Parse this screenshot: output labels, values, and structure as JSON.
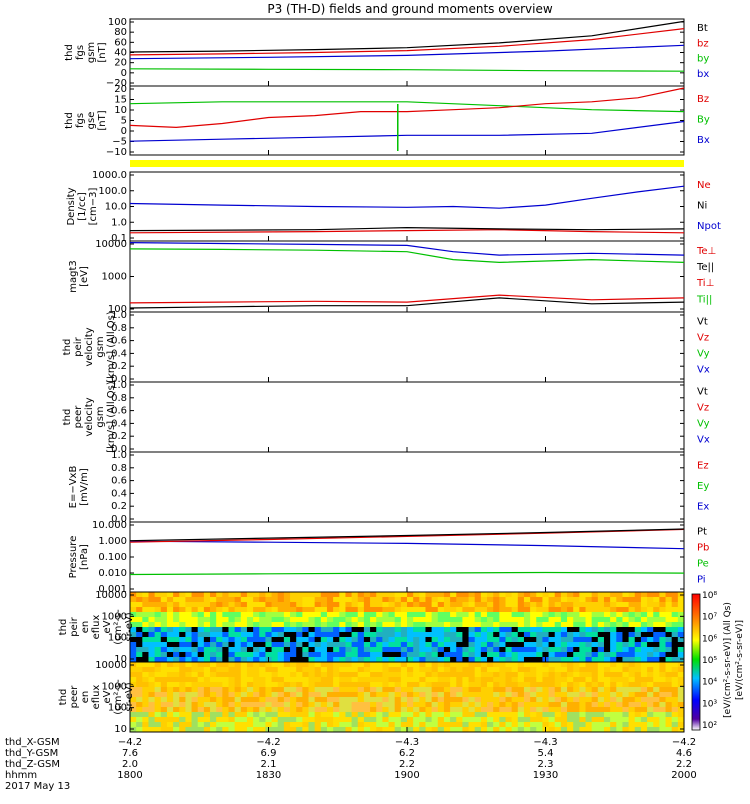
{
  "chart_data": {
    "type": "line",
    "title": "P3 (TH-D) fields and ground moments overview",
    "panels": [
      {
        "id": "fgs-gsm",
        "ylabel": [
          "thd",
          "fgs",
          "gsm",
          "[nT]"
        ],
        "yticks": [
          "100",
          "80",
          "60",
          "40",
          "20",
          "0",
          "−20"
        ],
        "ylim": [
          -40,
          100
        ],
        "series": [
          {
            "name": "Bt",
            "color": "#000000"
          },
          {
            "name": "bz",
            "color": "#e00000"
          },
          {
            "name": "by",
            "color": "#00c000"
          },
          {
            "name": "bx",
            "color": "#0000d0"
          }
        ]
      },
      {
        "id": "fgs-gse",
        "ylabel": [
          "thd",
          "fgs",
          "gse",
          "[nT]"
        ],
        "yticks": [
          "20",
          "15",
          "10",
          "5",
          "0",
          "−5",
          "−10"
        ],
        "ylim": [
          -15,
          20
        ],
        "series": [
          {
            "name": "Bz",
            "color": "#e00000"
          },
          {
            "name": "By",
            "color": "#00c000"
          },
          {
            "name": "Bx",
            "color": "#0000d0"
          }
        ]
      },
      {
        "id": "density",
        "ylabel": [
          "Density",
          "[1/cc]",
          "[cm−3]"
        ],
        "yticks": [
          "1000.0",
          "100.0",
          "10.0",
          "1.0",
          "0.1"
        ],
        "ylim": [
          0.1,
          1000
        ],
        "log": true,
        "series": [
          {
            "name": "Ne",
            "color": "#e00000"
          },
          {
            "name": "Ni",
            "color": "#000000"
          },
          {
            "name": "Npot",
            "color": "#0000d0"
          }
        ]
      },
      {
        "id": "temperature",
        "ylabel": [
          "magt3",
          "[eV]"
        ],
        "yticks": [
          "10000",
          "1000",
          "100"
        ],
        "ylim": [
          100,
          10000
        ],
        "log": true,
        "series": [
          {
            "name": "Te⊥",
            "color": "#e00000"
          },
          {
            "name": "Te||",
            "color": "#000000"
          },
          {
            "name": "Ti⊥",
            "color": "#e00000"
          },
          {
            "name": "Ti||",
            "color": "#00c000"
          }
        ]
      },
      {
        "id": "peir-velocity",
        "ylabel": [
          "thd",
          "peir",
          "velocity",
          "gsm",
          "[km/s] (All Qs)"
        ],
        "yticks": [
          "1.0",
          "0.8",
          "0.6",
          "0.4",
          "0.2",
          "0.0"
        ],
        "ylim": [
          0,
          1
        ],
        "series": [
          {
            "name": "Vt",
            "color": "#000000"
          },
          {
            "name": "Vz",
            "color": "#e00000"
          },
          {
            "name": "Vy",
            "color": "#00c000"
          },
          {
            "name": "Vx",
            "color": "#0000d0"
          }
        ]
      },
      {
        "id": "peer-velocity",
        "ylabel": [
          "thd",
          "peer",
          "velocity",
          "gsm",
          "[km/s] (All Qs)"
        ],
        "yticks": [
          "1.0",
          "0.8",
          "0.6",
          "0.4",
          "0.2",
          "0.0"
        ],
        "ylim": [
          0,
          1
        ],
        "series": [
          {
            "name": "Vt",
            "color": "#000000"
          },
          {
            "name": "Vz",
            "color": "#e00000"
          },
          {
            "name": "Vy",
            "color": "#00c000"
          },
          {
            "name": "Vx",
            "color": "#0000d0"
          }
        ]
      },
      {
        "id": "efield",
        "ylabel": [
          "E=−VxB",
          "[mV/m]"
        ],
        "yticks": [
          "1.0",
          "0.8",
          "0.6",
          "0.4",
          "0.2",
          "0.0"
        ],
        "ylim": [
          0,
          1
        ],
        "series": [
          {
            "name": "Ez",
            "color": "#e00000"
          },
          {
            "name": "Ey",
            "color": "#00c000"
          },
          {
            "name": "Ex",
            "color": "#0000d0"
          }
        ]
      },
      {
        "id": "pressure",
        "ylabel": [
          "Pressure",
          "[nPa]"
        ],
        "yticks": [
          "10.000",
          "1.000",
          "0.100",
          "0.010",
          "0.001"
        ],
        "ylim": [
          0.001,
          10
        ],
        "log": true,
        "series": [
          {
            "name": "Pt",
            "color": "#000000"
          },
          {
            "name": "Pb",
            "color": "#e00000"
          },
          {
            "name": "Pe",
            "color": "#00c000"
          },
          {
            "name": "Pi",
            "color": "#0000d0"
          }
        ]
      },
      {
        "id": "peir-eflux",
        "ylabel": [
          "thd",
          "peir",
          "en",
          "eflux",
          "eV",
          "(cm²-s-",
          "sr-eV)"
        ],
        "yticks": [
          "10000",
          "1000",
          "100",
          "10"
        ],
        "ylim": [
          5,
          30000
        ],
        "log": true,
        "spectrogram": true
      },
      {
        "id": "peer-eflux",
        "ylabel": [
          "thd",
          "peer",
          "en",
          "eflux",
          "eV",
          "(cm²-s-",
          "sr-eV)"
        ],
        "yticks": [
          "10000",
          "1000",
          "100",
          "10"
        ],
        "ylim": [
          5,
          30000
        ],
        "log": true,
        "spectrogram": true
      }
    ],
    "colorbar": {
      "ticks": [
        "10⁸",
        "10⁷",
        "10⁶",
        "10⁵",
        "10⁴",
        "10³",
        "10²"
      ],
      "label1": "[eV/(cm²-s-sr-eV)] (All Qs)",
      "label2": "[eV/(cm²-s-sr-eV)]"
    },
    "xaxis": {
      "rows": [
        {
          "label": "thd_X-GSM",
          "values": [
            "−4.2",
            "−4.2",
            "−4.3",
            "−4.3",
            "−4.2"
          ]
        },
        {
          "label": "thd_Y-GSM",
          "values": [
            "7.6",
            "6.9",
            "6.2",
            "5.4",
            "4.6"
          ]
        },
        {
          "label": "thd_Z-GSM",
          "values": [
            "2.0",
            "2.1",
            "2.2",
            "2.3",
            "2.2"
          ]
        },
        {
          "label": "hhmm",
          "values": [
            "1800",
            "1830",
            "1900",
            "1930",
            "2000"
          ]
        }
      ],
      "date": "2017 May 13",
      "minutes": [
        0,
        30,
        60,
        90,
        120
      ]
    },
    "curves": {
      "Bt": [
        [
          0,
          31
        ],
        [
          20,
          33
        ],
        [
          40,
          36
        ],
        [
          60,
          40
        ],
        [
          80,
          50
        ],
        [
          100,
          65
        ],
        [
          120,
          95
        ]
      ],
      "bz": [
        [
          0,
          25
        ],
        [
          20,
          27
        ],
        [
          40,
          30
        ],
        [
          60,
          34
        ],
        [
          80,
          43
        ],
        [
          100,
          57
        ],
        [
          120,
          80
        ]
      ],
      "by": [
        [
          0,
          -4
        ],
        [
          30,
          -5
        ],
        [
          60,
          -6
        ],
        [
          90,
          -8
        ],
        [
          120,
          -9
        ]
      ],
      "bx": [
        [
          0,
          17
        ],
        [
          30,
          20
        ],
        [
          60,
          24
        ],
        [
          90,
          33
        ],
        [
          120,
          45
        ]
      ],
      "gse_Bz": [
        [
          0,
          0
        ],
        [
          10,
          -1
        ],
        [
          20,
          1
        ],
        [
          30,
          4
        ],
        [
          40,
          5
        ],
        [
          50,
          7
        ],
        [
          60,
          7
        ],
        [
          70,
          8
        ],
        [
          80,
          9
        ],
        [
          90,
          11
        ],
        [
          100,
          12
        ],
        [
          110,
          14
        ],
        [
          120,
          19
        ]
      ],
      "gse_By": [
        [
          0,
          11
        ],
        [
          20,
          12
        ],
        [
          40,
          12
        ],
        [
          60,
          12
        ],
        [
          80,
          10
        ],
        [
          100,
          8
        ],
        [
          120,
          7
        ]
      ],
      "gse_Bx": [
        [
          0,
          -8
        ],
        [
          20,
          -7
        ],
        [
          40,
          -6
        ],
        [
          60,
          -5
        ],
        [
          80,
          -5
        ],
        [
          100,
          -4
        ],
        [
          120,
          2
        ]
      ],
      "Ne": [
        [
          0,
          0.3
        ],
        [
          40,
          0.35
        ],
        [
          60,
          0.4
        ],
        [
          80,
          0.45
        ],
        [
          100,
          0.35
        ],
        [
          120,
          0.3
        ]
      ],
      "Ni": [
        [
          0,
          0.4
        ],
        [
          40,
          0.45
        ],
        [
          60,
          0.6
        ],
        [
          80,
          0.5
        ],
        [
          100,
          0.45
        ],
        [
          120,
          0.5
        ]
      ],
      "Npot": [
        [
          0,
          15
        ],
        [
          20,
          12
        ],
        [
          40,
          10
        ],
        [
          60,
          9
        ],
        [
          70,
          10
        ],
        [
          80,
          8
        ],
        [
          90,
          12
        ],
        [
          100,
          30
        ],
        [
          110,
          70
        ],
        [
          120,
          150
        ]
      ],
      "TeP": [
        [
          0,
          180
        ],
        [
          20,
          190
        ],
        [
          40,
          200
        ],
        [
          60,
          190
        ],
        [
          80,
          300
        ],
        [
          100,
          220
        ],
        [
          120,
          250
        ]
      ],
      "TePar": [
        [
          0,
          130
        ],
        [
          20,
          140
        ],
        [
          40,
          150
        ],
        [
          60,
          150
        ],
        [
          80,
          250
        ],
        [
          100,
          170
        ],
        [
          120,
          190
        ]
      ],
      "TiP": [
        [
          0,
          9000
        ],
        [
          20,
          8500
        ],
        [
          40,
          8000
        ],
        [
          60,
          7500
        ],
        [
          70,
          5000
        ],
        [
          80,
          4000
        ],
        [
          100,
          4500
        ],
        [
          120,
          4000
        ]
      ],
      "TiPar": [
        [
          0,
          6000
        ],
        [
          20,
          5800
        ],
        [
          40,
          5500
        ],
        [
          60,
          5000
        ],
        [
          70,
          3000
        ],
        [
          80,
          2500
        ],
        [
          100,
          3000
        ],
        [
          120,
          2500
        ]
      ],
      "Pt": [
        [
          0,
          0.85
        ],
        [
          30,
          1.2
        ],
        [
          60,
          1.7
        ],
        [
          90,
          2.5
        ],
        [
          120,
          4
        ]
      ],
      "Pb": [
        [
          0,
          0.7
        ],
        [
          30,
          1.0
        ],
        [
          60,
          1.5
        ],
        [
          90,
          2.3
        ],
        [
          120,
          3.8
        ]
      ],
      "Pe": [
        [
          0,
          0.01
        ],
        [
          30,
          0.011
        ],
        [
          60,
          0.012
        ],
        [
          90,
          0.013
        ],
        [
          120,
          0.012
        ]
      ],
      "Pi": [
        [
          0,
          0.8
        ],
        [
          30,
          0.7
        ],
        [
          60,
          0.6
        ],
        [
          90,
          0.45
        ],
        [
          120,
          0.3
        ]
      ]
    }
  }
}
